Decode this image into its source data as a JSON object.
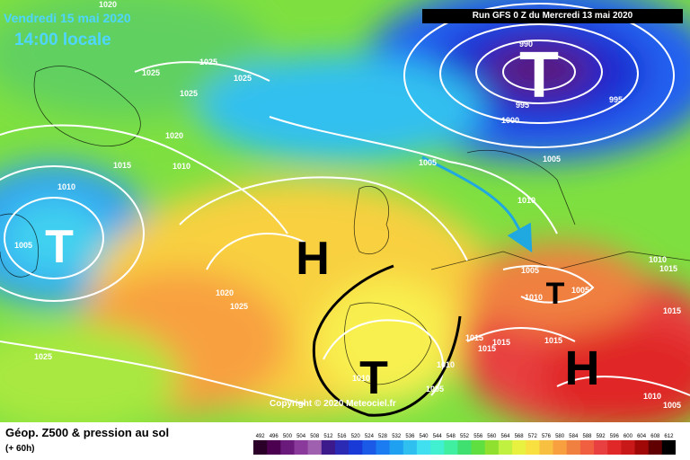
{
  "header": {
    "date_line": "Vendredi 15 mai 2020",
    "time_line": "14:00 locale",
    "run_info": "Run GFS 0 Z du Mercredi 13 mai 2020"
  },
  "footer": {
    "title": "Géop. Z500 & pression au sol",
    "subtitle": "(+ 60h)",
    "copyright": "Copyright © 2020 Meteociel.fr"
  },
  "pressure_systems": [
    {
      "type": "T",
      "kind": "low"
    },
    {
      "type": "T",
      "kind": "low"
    },
    {
      "type": "H",
      "kind": "high"
    },
    {
      "type": "T",
      "kind": "low"
    },
    {
      "type": "T",
      "kind": "low"
    },
    {
      "type": "H",
      "kind": "high"
    }
  ],
  "isobar_labels": [
    "1020",
    "1025",
    "1025",
    "1025",
    "1025",
    "1020",
    "1015",
    "1010",
    "1010",
    "1005",
    "1020",
    "1025",
    "1025",
    "990",
    "995",
    "995",
    "1000",
    "1005",
    "1010",
    "1005",
    "1010",
    "1015",
    "1015",
    "1010",
    "1005",
    "1015",
    "1015",
    "1010",
    "1005",
    "1010",
    "1005",
    "1015",
    "1010",
    "1005",
    "1015"
  ],
  "scale": {
    "values": [
      "492",
      "496",
      "500",
      "504",
      "508",
      "512",
      "516",
      "520",
      "524",
      "528",
      "532",
      "536",
      "540",
      "544",
      "548",
      "552",
      "556",
      "560",
      "564",
      "568",
      "572",
      "576",
      "580",
      "584",
      "588",
      "592",
      "596",
      "600",
      "604",
      "608",
      "612"
    ],
    "colors": [
      "#2a0028",
      "#4c0050",
      "#6a1a7a",
      "#8a3a9a",
      "#a060b0",
      "#3c1a8c",
      "#2a2ab4",
      "#1a3ad8",
      "#1a5ae6",
      "#1a7cf0",
      "#20a0f0",
      "#30c0f0",
      "#40e0f0",
      "#40f0d0",
      "#40f0a0",
      "#40e070",
      "#60e040",
      "#90e030",
      "#c0f040",
      "#e8f040",
      "#f8e040",
      "#f8c040",
      "#f8a040",
      "#f08040",
      "#f06040",
      "#e84040",
      "#e02828",
      "#c81818",
      "#a00808",
      "#600000",
      "#000000"
    ]
  },
  "colors": {
    "accent": "#4fd6ff",
    "arrow": "#20a8e0"
  }
}
